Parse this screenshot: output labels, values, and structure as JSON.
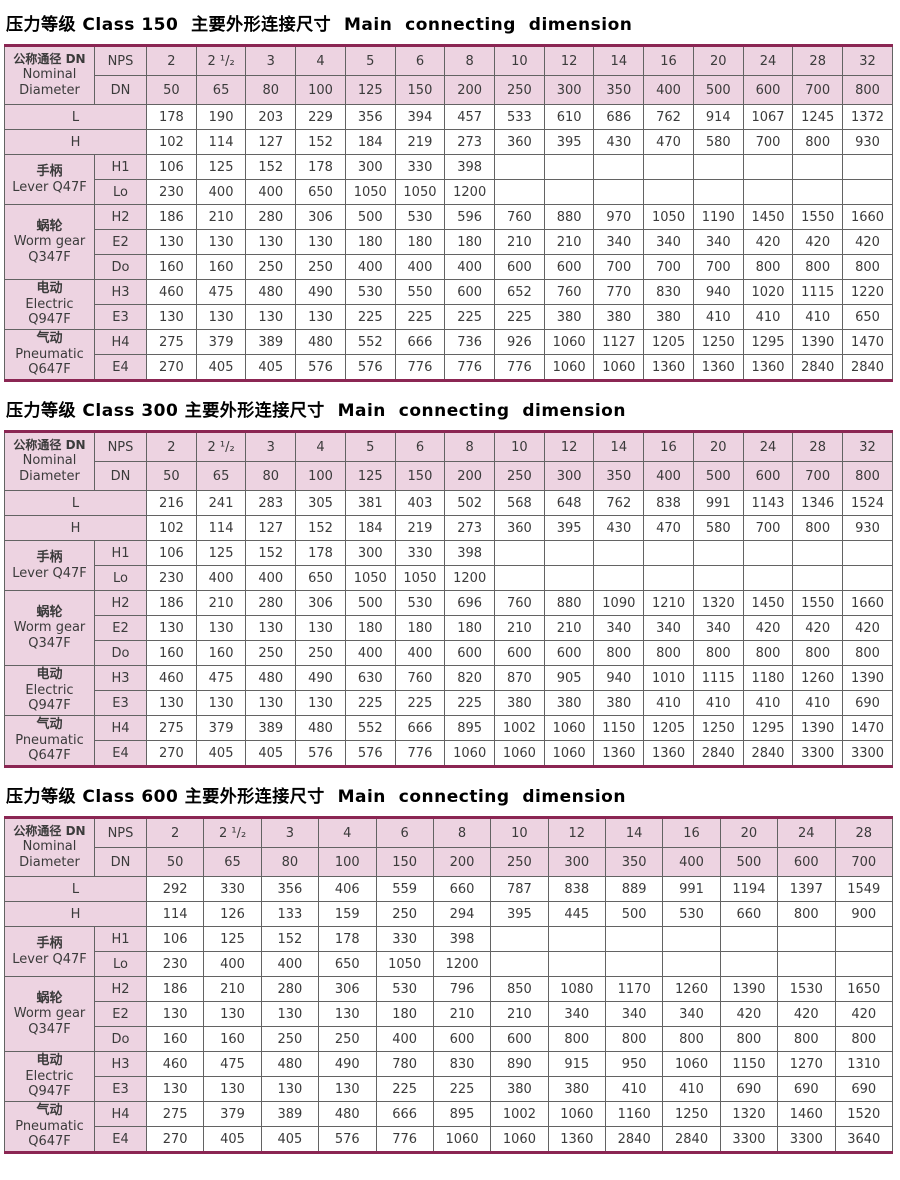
{
  "colors": {
    "header_pink": "#edd3e1",
    "rule_maroon": "#8b2653",
    "grid_gray": "#636363"
  },
  "corner": {
    "zh": "公称通径 DN",
    "en": "Nominal\nDiameter"
  },
  "labels": {
    "nps": "NPS",
    "dn": "DN"
  },
  "tables": [
    {
      "title": "压力等级 Class 150  主要外形连接尺寸  Main  connecting  dimension",
      "nps": [
        "2",
        "2 ¹/₂",
        "3",
        "4",
        "5",
        "6",
        "8",
        "10",
        "12",
        "14",
        "16",
        "20",
        "24",
        "28",
        "32"
      ],
      "dn": [
        "50",
        "65",
        "80",
        "100",
        "125",
        "150",
        "200",
        "250",
        "300",
        "350",
        "400",
        "500",
        "600",
        "700",
        "800"
      ],
      "simple_rows": [
        {
          "label": "L",
          "values": [
            "178",
            "190",
            "203",
            "229",
            "356",
            "394",
            "457",
            "533",
            "610",
            "686",
            "762",
            "914",
            "1067",
            "1245",
            "1372"
          ]
        },
        {
          "label": "H",
          "values": [
            "102",
            "114",
            "127",
            "152",
            "184",
            "219",
            "273",
            "360",
            "395",
            "430",
            "470",
            "580",
            "700",
            "800",
            "930"
          ]
        }
      ],
      "groups": [
        {
          "zh": "手柄",
          "en": "Lever Q47F",
          "rows": [
            {
              "label": "H1",
              "values": [
                "106",
                "125",
                "152",
                "178",
                "300",
                "330",
                "398",
                "",
                "",
                "",
                "",
                "",
                "",
                "",
                ""
              ]
            },
            {
              "label": "Lo",
              "values": [
                "230",
                "400",
                "400",
                "650",
                "1050",
                "1050",
                "1200",
                "",
                "",
                "",
                "",
                "",
                "",
                "",
                ""
              ]
            }
          ]
        },
        {
          "zh": "蜗轮",
          "en": "Worm gear\nQ347F",
          "rows": [
            {
              "label": "H2",
              "values": [
                "186",
                "210",
                "280",
                "306",
                "500",
                "530",
                "596",
                "760",
                "880",
                "970",
                "1050",
                "1190",
                "1450",
                "1550",
                "1660"
              ]
            },
            {
              "label": "E2",
              "values": [
                "130",
                "130",
                "130",
                "130",
                "180",
                "180",
                "180",
                "210",
                "210",
                "340",
                "340",
                "340",
                "420",
                "420",
                "420"
              ]
            },
            {
              "label": "Do",
              "values": [
                "160",
                "160",
                "250",
                "250",
                "400",
                "400",
                "400",
                "600",
                "600",
                "700",
                "700",
                "700",
                "800",
                "800",
                "800"
              ]
            }
          ]
        },
        {
          "zh": "电动",
          "en": "Electric\nQ947F",
          "rows": [
            {
              "label": "H3",
              "values": [
                "460",
                "475",
                "480",
                "490",
                "530",
                "550",
                "600",
                "652",
                "760",
                "770",
                "830",
                "940",
                "1020",
                "1115",
                "1220"
              ]
            },
            {
              "label": "E3",
              "values": [
                "130",
                "130",
                "130",
                "130",
                "225",
                "225",
                "225",
                "225",
                "380",
                "380",
                "380",
                "410",
                "410",
                "410",
                "650"
              ]
            }
          ]
        },
        {
          "zh": "气动",
          "en": "Pneumatic\nQ647F",
          "rows": [
            {
              "label": "H4",
              "values": [
                "275",
                "379",
                "389",
                "480",
                "552",
                "666",
                "736",
                "926",
                "1060",
                "1127",
                "1205",
                "1250",
                "1295",
                "1390",
                "1470"
              ]
            },
            {
              "label": "E4",
              "values": [
                "270",
                "405",
                "405",
                "576",
                "576",
                "776",
                "776",
                "776",
                "1060",
                "1060",
                "1360",
                "1360",
                "1360",
                "2840",
                "2840"
              ]
            }
          ]
        }
      ]
    },
    {
      "title": "压力等级 Class 300 主要外形连接尺寸  Main  connecting  dimension",
      "nps": [
        "2",
        "2 ¹/₂",
        "3",
        "4",
        "5",
        "6",
        "8",
        "10",
        "12",
        "14",
        "16",
        "20",
        "24",
        "28",
        "32"
      ],
      "dn": [
        "50",
        "65",
        "80",
        "100",
        "125",
        "150",
        "200",
        "250",
        "300",
        "350",
        "400",
        "500",
        "600",
        "700",
        "800"
      ],
      "simple_rows": [
        {
          "label": "L",
          "values": [
            "216",
            "241",
            "283",
            "305",
            "381",
            "403",
            "502",
            "568",
            "648",
            "762",
            "838",
            "991",
            "1143",
            "1346",
            "1524"
          ]
        },
        {
          "label": "H",
          "values": [
            "102",
            "114",
            "127",
            "152",
            "184",
            "219",
            "273",
            "360",
            "395",
            "430",
            "470",
            "580",
            "700",
            "800",
            "930"
          ]
        }
      ],
      "groups": [
        {
          "zh": "手柄",
          "en": "Lever Q47F",
          "rows": [
            {
              "label": "H1",
              "values": [
                "106",
                "125",
                "152",
                "178",
                "300",
                "330",
                "398",
                "",
                "",
                "",
                "",
                "",
                "",
                "",
                ""
              ]
            },
            {
              "label": "Lo",
              "values": [
                "230",
                "400",
                "400",
                "650",
                "1050",
                "1050",
                "1200",
                "",
                "",
                "",
                "",
                "",
                "",
                "",
                ""
              ]
            }
          ]
        },
        {
          "zh": "蜗轮",
          "en": "Worm gear\nQ347F",
          "rows": [
            {
              "label": "H2",
              "values": [
                "186",
                "210",
                "280",
                "306",
                "500",
                "530",
                "696",
                "760",
                "880",
                "1090",
                "1210",
                "1320",
                "1450",
                "1550",
                "1660"
              ]
            },
            {
              "label": "E2",
              "values": [
                "130",
                "130",
                "130",
                "130",
                "180",
                "180",
                "180",
                "210",
                "210",
                "340",
                "340",
                "340",
                "420",
                "420",
                "420"
              ]
            },
            {
              "label": "Do",
              "values": [
                "160",
                "160",
                "250",
                "250",
                "400",
                "400",
                "600",
                "600",
                "600",
                "800",
                "800",
                "800",
                "800",
                "800",
                "800"
              ]
            }
          ]
        },
        {
          "zh": "电动",
          "en": "Electric\nQ947F",
          "rows": [
            {
              "label": "H3",
              "values": [
                "460",
                "475",
                "480",
                "490",
                "630",
                "760",
                "820",
                "870",
                "905",
                "940",
                "1010",
                "1115",
                "1180",
                "1260",
                "1390"
              ]
            },
            {
              "label": "E3",
              "values": [
                "130",
                "130",
                "130",
                "130",
                "225",
                "225",
                "225",
                "380",
                "380",
                "380",
                "410",
                "410",
                "410",
                "410",
                "690"
              ]
            }
          ]
        },
        {
          "zh": "气动",
          "en": "Pneumatic\nQ647F",
          "rows": [
            {
              "label": "H4",
              "values": [
                "275",
                "379",
                "389",
                "480",
                "552",
                "666",
                "895",
                "1002",
                "1060",
                "1150",
                "1205",
                "1250",
                "1295",
                "1390",
                "1470"
              ]
            },
            {
              "label": "E4",
              "values": [
                "270",
                "405",
                "405",
                "576",
                "576",
                "776",
                "1060",
                "1060",
                "1060",
                "1360",
                "1360",
                "2840",
                "2840",
                "3300",
                "3300"
              ]
            }
          ]
        }
      ]
    },
    {
      "title": "压力等级 Class 600 主要外形连接尺寸  Main  connecting  dimension",
      "nps": [
        "2",
        "2 ¹/₂",
        "3",
        "4",
        "6",
        "8",
        "10",
        "12",
        "14",
        "16",
        "20",
        "24",
        "28"
      ],
      "dn": [
        "50",
        "65",
        "80",
        "100",
        "150",
        "200",
        "250",
        "300",
        "350",
        "400",
        "500",
        "600",
        "700"
      ],
      "simple_rows": [
        {
          "label": "L",
          "values": [
            "292",
            "330",
            "356",
            "406",
            "559",
            "660",
            "787",
            "838",
            "889",
            "991",
            "1194",
            "1397",
            "1549"
          ]
        },
        {
          "label": "H",
          "values": [
            "114",
            "126",
            "133",
            "159",
            "250",
            "294",
            "395",
            "445",
            "500",
            "530",
            "660",
            "800",
            "900"
          ]
        }
      ],
      "groups": [
        {
          "zh": "手柄",
          "en": "Lever Q47F",
          "rows": [
            {
              "label": "H1",
              "values": [
                "106",
                "125",
                "152",
                "178",
                "330",
                "398",
                "",
                "",
                "",
                "",
                "",
                "",
                ""
              ]
            },
            {
              "label": "Lo",
              "values": [
                "230",
                "400",
                "400",
                "650",
                "1050",
                "1200",
                "",
                "",
                "",
                "",
                "",
                "",
                ""
              ]
            }
          ]
        },
        {
          "zh": "蜗轮",
          "en": "Worm gear\nQ347F",
          "rows": [
            {
              "label": "H2",
              "values": [
                "186",
                "210",
                "280",
                "306",
                "530",
                "796",
                "850",
                "1080",
                "1170",
                "1260",
                "1390",
                "1530",
                "1650"
              ]
            },
            {
              "label": "E2",
              "values": [
                "130",
                "130",
                "130",
                "130",
                "180",
                "210",
                "210",
                "340",
                "340",
                "340",
                "420",
                "420",
                "420"
              ]
            },
            {
              "label": "Do",
              "values": [
                "160",
                "160",
                "250",
                "250",
                "400",
                "600",
                "600",
                "800",
                "800",
                "800",
                "800",
                "800",
                "800"
              ]
            }
          ]
        },
        {
          "zh": "电动",
          "en": "Electric\nQ947F",
          "rows": [
            {
              "label": "H3",
              "values": [
                "460",
                "475",
                "480",
                "490",
                "780",
                "830",
                "890",
                "915",
                "950",
                "1060",
                "1150",
                "1270",
                "1310"
              ]
            },
            {
              "label": "E3",
              "values": [
                "130",
                "130",
                "130",
                "130",
                "225",
                "225",
                "380",
                "380",
                "410",
                "410",
                "690",
                "690",
                "690"
              ]
            }
          ]
        },
        {
          "zh": "气动",
          "en": "Pneumatic\nQ647F",
          "rows": [
            {
              "label": "H4",
              "values": [
                "275",
                "379",
                "389",
                "480",
                "666",
                "895",
                "1002",
                "1060",
                "1160",
                "1250",
                "1320",
                "1460",
                "1520"
              ]
            },
            {
              "label": "E4",
              "values": [
                "270",
                "405",
                "405",
                "576",
                "776",
                "1060",
                "1060",
                "1360",
                "2840",
                "2840",
                "3300",
                "3300",
                "3640"
              ]
            }
          ]
        }
      ]
    }
  ]
}
